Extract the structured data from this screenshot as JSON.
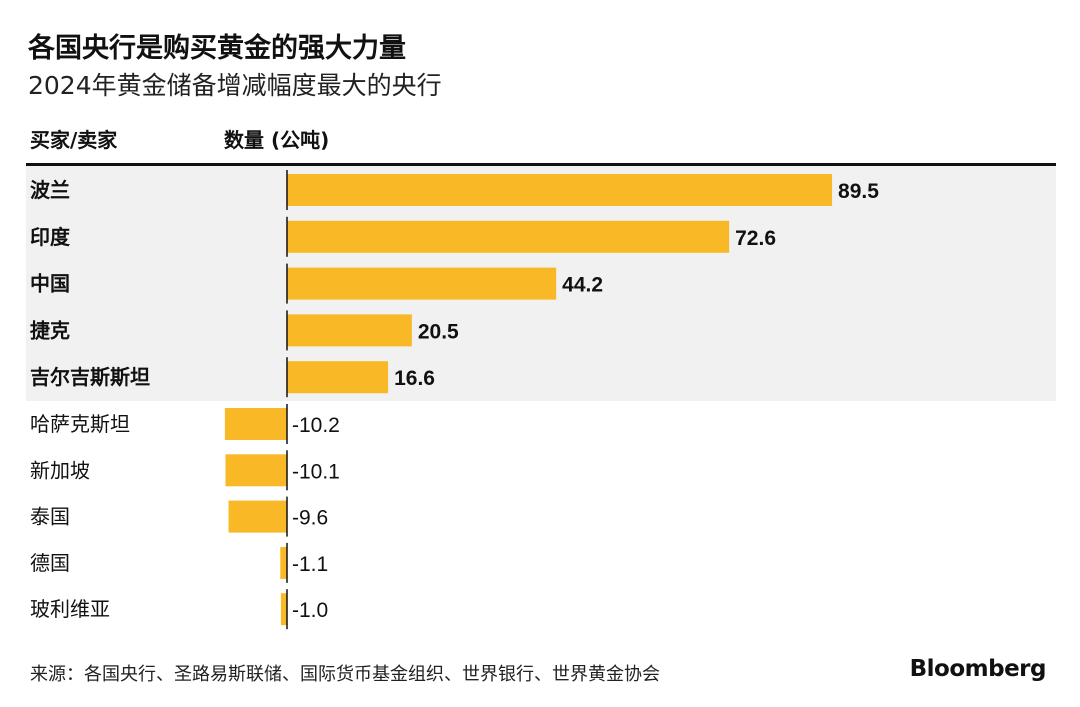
{
  "chart_data": {
    "type": "bar",
    "orientation": "horizontal",
    "title": "各国央行是购买黄金的强大力量",
    "subtitle": "2024年黄金储备增减幅度最大的央行",
    "category_header": "买家/卖家",
    "value_header": "数量 (公吨)",
    "categories": [
      "波兰",
      "印度",
      "中国",
      "捷克",
      "吉尔吉斯斯坦",
      "哈萨克斯坦",
      "新加坡",
      "泰国",
      "德国",
      "玻利维亚"
    ],
    "values": [
      89.5,
      72.6,
      44.2,
      20.5,
      16.6,
      -10.2,
      -10.1,
      -9.6,
      -1.1,
      -1.0
    ],
    "labels": [
      "89.5",
      "72.6",
      "44.2",
      "20.5",
      "16.6",
      "-10.2",
      "-10.1",
      "-9.6",
      "-1.1",
      "-1.0"
    ],
    "highlighted_count": 5,
    "bar_color": "#f9b826",
    "highlight_bg": "#f1f1f1"
  },
  "source": "来源：各国央行、圣路易斯联储、国际货币基金组织、世界银行、世界黄金协会",
  "brand": "Bloomberg"
}
